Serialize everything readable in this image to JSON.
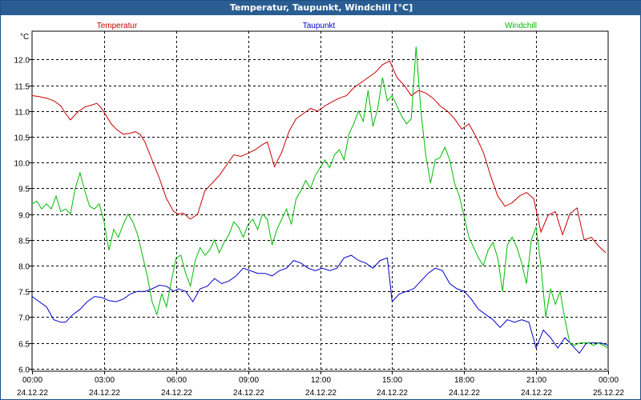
{
  "window": {
    "title": "Temperatur, Taupunkt, Windchill [°C]"
  },
  "chart_data": {
    "type": "line",
    "title": "Temperatur, Taupunkt, Windchill [°C]",
    "ylabel": "°C",
    "ylim": [
      5.95,
      12.55
    ],
    "yticks": [
      "6.0",
      "6.5",
      "7.0",
      "7.5",
      "8.0",
      "8.5",
      "9.0",
      "9.5",
      "10.0",
      "10.5",
      "11.0",
      "11.5",
      "12.0"
    ],
    "xlim": [
      0,
      24
    ],
    "xticks": [
      {
        "x": 0,
        "time": "00:00",
        "date": "24.12.22"
      },
      {
        "x": 3,
        "time": "03:00",
        "date": "24.12.22"
      },
      {
        "x": 6,
        "time": "06:00",
        "date": "24.12.22"
      },
      {
        "x": 9,
        "time": "09:00",
        "date": "24.12.22"
      },
      {
        "x": 12,
        "time": "12:00",
        "date": "24.12.22"
      },
      {
        "x": 15,
        "time": "15:00",
        "date": "24.12.22"
      },
      {
        "x": 18,
        "time": "18:00",
        "date": "24.12.22"
      },
      {
        "x": 21,
        "time": "21:00",
        "date": "24.12.22"
      },
      {
        "x": 24,
        "time": "00:00",
        "date": "25.12.22"
      }
    ],
    "grid": true,
    "legend_position": "top",
    "series": [
      {
        "name": "Temperatur",
        "color": "#cc0000",
        "x": [
          0,
          0.3,
          0.6,
          0.9,
          1.2,
          1.4,
          1.6,
          1.9,
          2.2,
          2.5,
          2.7,
          2.9,
          3.1,
          3.3,
          3.5,
          3.8,
          4.1,
          4.3,
          4.5,
          4.7,
          5.0,
          5.3,
          5.6,
          5.9,
          6.1,
          6.3,
          6.6,
          6.9,
          7.2,
          7.5,
          7.8,
          8.1,
          8.4,
          8.7,
          9.0,
          9.3,
          9.6,
          9.8,
          10.1,
          10.4,
          10.7,
          11.0,
          11.3,
          11.6,
          11.9,
          12.2,
          12.5,
          12.8,
          13.1,
          13.4,
          13.7,
          14.0,
          14.3,
          14.6,
          14.8,
          14.9,
          15.2,
          15.5,
          15.8,
          16.1,
          16.4,
          16.7,
          17.0,
          17.3,
          17.6,
          17.9,
          18.2,
          18.5,
          18.8,
          19.1,
          19.4,
          19.7,
          20.0,
          20.3,
          20.6,
          20.9,
          21.2,
          21.5,
          21.8,
          22.1,
          22.4,
          22.7,
          23.0,
          23.3,
          23.6,
          23.9
        ],
        "values": [
          11.3,
          11.28,
          11.25,
          11.2,
          11.1,
          10.95,
          10.83,
          10.98,
          11.08,
          11.12,
          11.15,
          11.05,
          10.9,
          10.75,
          10.65,
          10.55,
          10.57,
          10.6,
          10.55,
          10.4,
          10.05,
          9.7,
          9.3,
          9.05,
          9.0,
          9.02,
          8.9,
          9.0,
          9.45,
          9.6,
          9.75,
          9.95,
          10.15,
          10.12,
          10.18,
          10.25,
          10.35,
          10.4,
          9.92,
          10.2,
          10.6,
          10.85,
          10.95,
          11.05,
          11.0,
          11.1,
          11.18,
          11.25,
          11.3,
          11.45,
          11.55,
          11.65,
          11.75,
          11.9,
          11.95,
          11.97,
          11.65,
          11.5,
          11.3,
          11.4,
          11.35,
          11.25,
          11.1,
          11.0,
          10.85,
          10.65,
          10.75,
          10.5,
          10.2,
          9.75,
          9.35,
          9.15,
          9.22,
          9.35,
          9.42,
          9.3,
          8.65,
          8.98,
          9.05,
          8.6,
          9.0,
          9.12,
          8.5,
          8.55,
          8.38,
          8.25
        ],
        "label_series": "legend.temperatur"
      },
      {
        "name": "Taupunkt",
        "color": "#0000cc",
        "x": [
          0,
          0.3,
          0.6,
          0.9,
          1.2,
          1.4,
          1.7,
          2.0,
          2.3,
          2.6,
          2.9,
          3.2,
          3.5,
          3.8,
          4.1,
          4.4,
          4.7,
          5.0,
          5.3,
          5.6,
          5.9,
          6.1,
          6.4,
          6.7,
          7.0,
          7.3,
          7.6,
          7.9,
          8.2,
          8.5,
          8.8,
          9.1,
          9.4,
          9.7,
          10.0,
          10.3,
          10.6,
          10.9,
          11.2,
          11.5,
          11.8,
          12.1,
          12.4,
          12.7,
          13.0,
          13.3,
          13.6,
          13.9,
          14.2,
          14.5,
          14.8,
          15.0,
          15.3,
          15.6,
          15.9,
          16.2,
          16.5,
          16.8,
          17.1,
          17.4,
          17.7,
          18.0,
          18.3,
          18.6,
          18.9,
          19.2,
          19.5,
          19.8,
          20.1,
          20.4,
          20.7,
          21.0,
          21.3,
          21.6,
          21.9,
          22.2,
          22.5,
          22.8,
          23.1,
          23.4,
          23.7,
          24.0
        ],
        "values": [
          7.4,
          7.3,
          7.2,
          6.95,
          6.9,
          6.9,
          7.05,
          7.15,
          7.3,
          7.4,
          7.38,
          7.32,
          7.3,
          7.35,
          7.45,
          7.5,
          7.5,
          7.55,
          7.62,
          7.6,
          7.5,
          7.55,
          7.5,
          7.3,
          7.55,
          7.6,
          7.75,
          7.65,
          7.7,
          7.8,
          7.95,
          7.9,
          7.85,
          7.85,
          7.8,
          7.9,
          7.95,
          8.1,
          8.05,
          7.95,
          7.9,
          7.95,
          7.9,
          7.95,
          8.15,
          8.2,
          8.1,
          8.05,
          7.95,
          8.1,
          8.15,
          7.3,
          7.45,
          7.5,
          7.55,
          7.7,
          7.85,
          7.95,
          7.9,
          7.65,
          7.55,
          7.5,
          7.35,
          7.15,
          7.05,
          6.95,
          6.8,
          6.95,
          6.9,
          6.95,
          6.9,
          6.4,
          6.75,
          6.6,
          6.4,
          6.6,
          6.45,
          6.3,
          6.5,
          6.5,
          6.5,
          6.45
        ],
        "label_series": "legend.taupunkt"
      },
      {
        "name": "Windchill",
        "color": "#00bb00",
        "x": [
          0,
          0.2,
          0.4,
          0.6,
          0.8,
          1.0,
          1.2,
          1.4,
          1.6,
          1.8,
          2.0,
          2.2,
          2.4,
          2.6,
          2.8,
          3.0,
          3.2,
          3.4,
          3.6,
          3.8,
          4.0,
          4.2,
          4.4,
          4.6,
          4.8,
          5.0,
          5.2,
          5.4,
          5.6,
          5.8,
          6.0,
          6.2,
          6.4,
          6.6,
          6.8,
          7.0,
          7.2,
          7.4,
          7.6,
          7.8,
          8.0,
          8.2,
          8.4,
          8.6,
          8.8,
          9.0,
          9.2,
          9.4,
          9.6,
          9.8,
          10.0,
          10.2,
          10.4,
          10.6,
          10.8,
          11.0,
          11.2,
          11.4,
          11.6,
          11.8,
          12.0,
          12.2,
          12.4,
          12.6,
          12.8,
          13.0,
          13.2,
          13.4,
          13.6,
          13.8,
          14.0,
          14.2,
          14.4,
          14.6,
          14.8,
          15.0,
          15.2,
          15.4,
          15.6,
          15.8,
          16.0,
          16.2,
          16.4,
          16.6,
          16.8,
          17.0,
          17.2,
          17.4,
          17.6,
          17.8,
          18.0,
          18.2,
          18.4,
          18.6,
          18.8,
          19.0,
          19.2,
          19.4,
          19.6,
          19.8,
          20.0,
          20.2,
          20.4,
          20.6,
          20.8,
          21.0,
          21.2,
          21.4,
          21.6,
          21.8,
          22.0,
          22.2,
          22.4,
          22.6,
          22.8,
          23.0,
          23.2,
          23.4,
          23.6,
          23.8,
          24.0
        ],
        "values": [
          9.2,
          9.25,
          9.1,
          9.2,
          9.1,
          9.35,
          9.05,
          9.1,
          9.0,
          9.5,
          9.8,
          9.45,
          9.15,
          9.1,
          9.2,
          8.85,
          8.3,
          8.7,
          8.55,
          8.8,
          9.0,
          8.85,
          8.6,
          8.2,
          7.8,
          7.3,
          7.05,
          7.45,
          7.2,
          7.7,
          8.15,
          8.2,
          7.85,
          7.6,
          8.1,
          8.35,
          8.2,
          8.3,
          8.5,
          8.25,
          8.45,
          8.6,
          8.85,
          8.75,
          8.55,
          8.8,
          8.9,
          8.7,
          9.0,
          8.9,
          8.4,
          8.7,
          8.9,
          9.1,
          8.8,
          9.3,
          9.45,
          9.65,
          9.5,
          9.75,
          9.9,
          10.05,
          9.9,
          10.15,
          10.25,
          10.05,
          10.55,
          10.75,
          11.0,
          10.8,
          11.4,
          10.7,
          11.05,
          11.65,
          11.2,
          11.3,
          11.1,
          10.9,
          10.75,
          10.85,
          12.25,
          11.0,
          10.15,
          9.6,
          10.05,
          10.1,
          10.3,
          10.05,
          9.6,
          9.35,
          8.95,
          8.55,
          8.35,
          8.15,
          8.0,
          8.3,
          8.45,
          8.15,
          7.5,
          8.4,
          8.55,
          8.35,
          8.05,
          7.65,
          8.5,
          8.75,
          8.0,
          7.0,
          7.55,
          7.25,
          7.5,
          6.95,
          6.5,
          6.45,
          6.5,
          6.5,
          6.5,
          6.45,
          6.5,
          6.45,
          6.4
        ],
        "label_series": "legend.windchill"
      }
    ]
  },
  "legend": {
    "temperatur": "Temperatur",
    "taupunkt": "Taupunkt",
    "windchill": "Windchill"
  }
}
